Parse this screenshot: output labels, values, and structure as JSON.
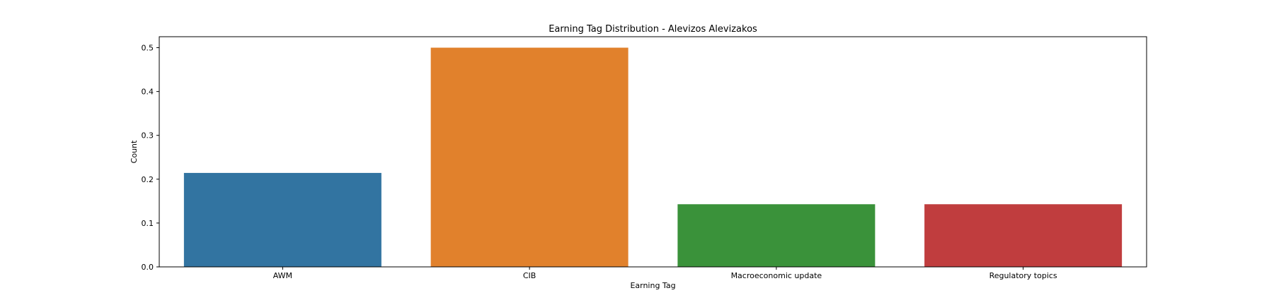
{
  "chart_data": {
    "type": "bar",
    "title": "Earning Tag Distribution - Alevizos Alevizakos",
    "xlabel": "Earning Tag",
    "ylabel": "Count",
    "categories": [
      "AWM",
      "CIB",
      "Macroeconomic update",
      "Regulatory topics"
    ],
    "values": [
      0.2143,
      0.5,
      0.1429,
      0.1429
    ],
    "colors": [
      "#3274a1",
      "#e1812c",
      "#3a923a",
      "#c03d3e"
    ],
    "ylim": [
      0,
      0.525
    ],
    "yticks": [
      0.0,
      0.1,
      0.2,
      0.3,
      0.4,
      0.5
    ],
    "ytick_labels": [
      "0.0",
      "0.1",
      "0.2",
      "0.3",
      "0.4",
      "0.5"
    ],
    "grid": false,
    "legend": "none"
  }
}
